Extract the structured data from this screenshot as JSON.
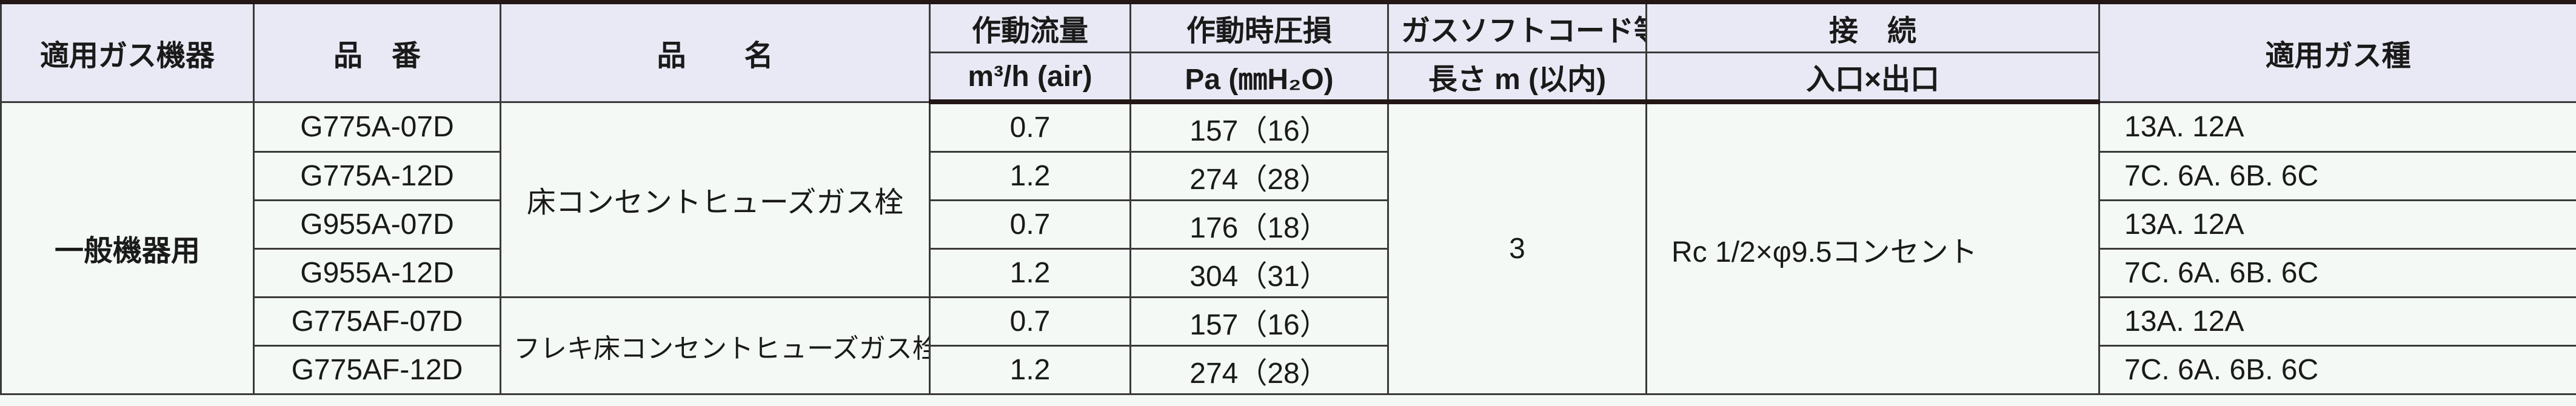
{
  "headers": {
    "device": "適用ガス機器",
    "part_no": "品　番",
    "product_name": "品　　名",
    "flow": "作動流量",
    "flow_unit": "m³/h (air)",
    "pressure": "作動時圧損",
    "pressure_unit": "Pa (㎜H₂O)",
    "cord": "ガスソフトコード等",
    "cord_unit": "長さ m (以内)",
    "connection": "接　続",
    "connection_sub": "入口×出口",
    "gas_type": "適用ガス種"
  },
  "device_group": "一般機器用",
  "product_groups": [
    "床コンセントヒューズガス栓",
    "フレキ床コンセントヒューズガス栓"
  ],
  "cord_length": "3",
  "connection": "Rc 1/2×φ9.5コンセント",
  "rows": [
    {
      "part_no": "G775A-07D",
      "flow": "0.7",
      "pressure": "157（16）",
      "gas": "13A. 12A"
    },
    {
      "part_no": "G775A-12D",
      "flow": "1.2",
      "pressure": "274（28）",
      "gas": "7C. 6A. 6B. 6C"
    },
    {
      "part_no": "G955A-07D",
      "flow": "0.7",
      "pressure": "176（18）",
      "gas": "13A. 12A"
    },
    {
      "part_no": "G955A-12D",
      "flow": "1.2",
      "pressure": "304（31）",
      "gas": "7C. 6A. 6B. 6C"
    },
    {
      "part_no": "G775AF-07D",
      "flow": "0.7",
      "pressure": "157（16）",
      "gas": "13A. 12A"
    },
    {
      "part_no": "G775AF-12D",
      "flow": "1.2",
      "pressure": "274（28）",
      "gas": "7C. 6A. 6B. 6C"
    }
  ]
}
